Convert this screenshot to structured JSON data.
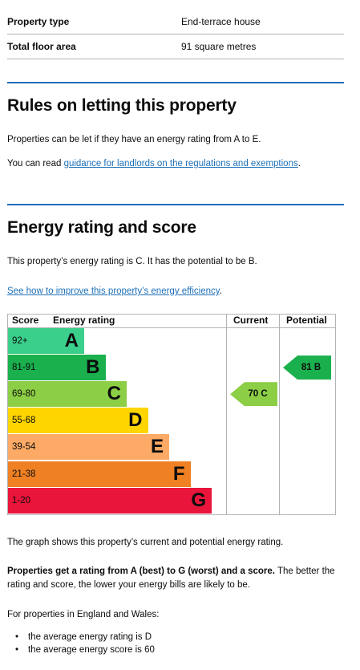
{
  "summary": [
    {
      "label": "Property type",
      "value": "End-terrace house"
    },
    {
      "label": "Total floor area",
      "value": "91 square metres"
    }
  ],
  "letting": {
    "heading": "Rules on letting this property",
    "para1": "Properties can be let if they have an energy rating from A to E.",
    "para2_prefix": "You can read ",
    "para2_link": "guidance for landlords on the regulations and exemptions",
    "para2_suffix": "."
  },
  "energy": {
    "heading": "Energy rating and score",
    "para1": "This property’s energy rating is C. It has the potential to be B.",
    "improve_link": "See how to improve this property’s energy efficiency",
    "improve_suffix": "."
  },
  "chart_data": {
    "type": "table",
    "columns": [
      "Score",
      "Energy rating",
      "Current",
      "Potential"
    ],
    "bands": [
      {
        "score": "92+",
        "rating": "A",
        "color": "#3acf8b"
      },
      {
        "score": "81-91",
        "rating": "B",
        "color": "#1ab04d"
      },
      {
        "score": "69-80",
        "rating": "C",
        "color": "#8cce45"
      },
      {
        "score": "55-68",
        "rating": "D",
        "color": "#ffd500"
      },
      {
        "score": "39-54",
        "rating": "E",
        "color": "#fcaa65"
      },
      {
        "score": "21-38",
        "rating": "F",
        "color": "#ef8023"
      },
      {
        "score": "1-20",
        "rating": "G",
        "color": "#e9153b"
      }
    ],
    "current": {
      "score": 70,
      "rating": "C",
      "label": "70  C",
      "color": "#8cce45"
    },
    "potential": {
      "score": 81,
      "rating": "B",
      "label": "81  B",
      "color": "#1ab04d"
    }
  },
  "after": {
    "graph_note": "The graph shows this property’s current and potential energy rating.",
    "bold_part": "Properties get a rating from A (best) to G (worst) and a score.",
    "rest_part": " The better the rating and score, the lower your energy bills are likely to be.",
    "england": "For properties in England and Wales:",
    "bullets": [
      "the average energy rating is D",
      "the average energy score is 60"
    ]
  }
}
